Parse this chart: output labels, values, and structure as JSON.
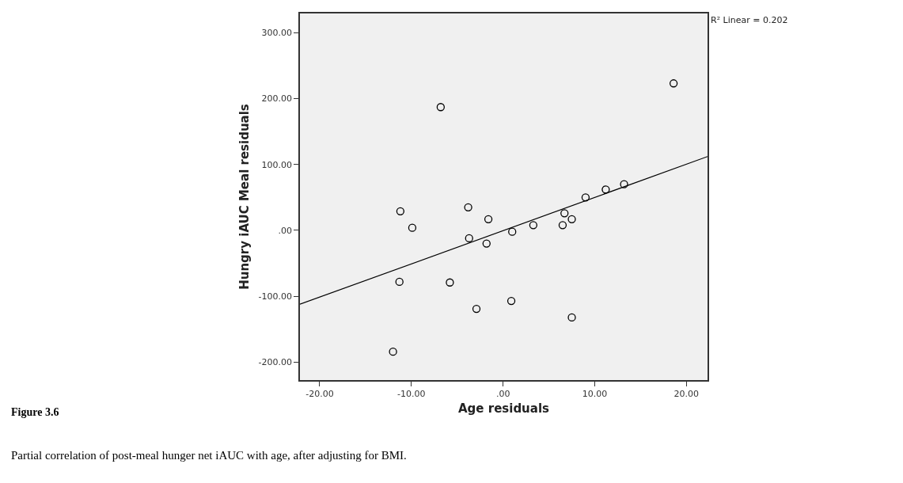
{
  "chart_data": {
    "type": "scatter",
    "xlabel": "Age residuals",
    "ylabel": "Hungry iAUC Meal residuals",
    "xlim": [
      -22.15,
      22.3
    ],
    "ylim": [
      -227,
      329
    ],
    "xticks": [
      {
        "value": -20,
        "label": "-20.00"
      },
      {
        "value": -10,
        "label": "-10.00"
      },
      {
        "value": 0,
        "label": ".00"
      },
      {
        "value": 10,
        "label": "10.00"
      },
      {
        "value": 20,
        "label": "20.00"
      }
    ],
    "yticks": [
      {
        "value": -200,
        "label": "-200.00"
      },
      {
        "value": -100,
        "label": "-100.00"
      },
      {
        "value": 0,
        "label": ".00"
      },
      {
        "value": 100,
        "label": "100.00"
      },
      {
        "value": 200,
        "label": "200.00"
      },
      {
        "value": 300,
        "label": "300.00"
      }
    ],
    "grid": false,
    "marker": "circle",
    "series": [
      {
        "color": "#000000",
        "x": [
          -6.8,
          -11.2,
          -9.9,
          -11.3,
          -5.8,
          -12.0,
          18.6,
          -3.8,
          -1.6,
          -3.7,
          -1.8,
          1.0,
          3.3,
          6.5,
          6.7,
          7.5,
          9.0,
          11.2,
          13.2,
          -2.9,
          0.9,
          7.5
        ],
        "values": [
          187,
          29,
          4,
          -78,
          -79,
          -184,
          223,
          35,
          17,
          -12,
          -20,
          -2,
          8,
          8,
          26,
          17,
          50,
          62,
          70,
          -119,
          -107,
          -132
        ]
      },
      {
        "type": "line",
        "marker": "none",
        "color": "#000000",
        "x": [
          -22.15,
          22.3
        ],
        "values": [
          -112,
          112
        ]
      }
    ],
    "annotations": [
      "R² Linear = 0.202",
      "Figure 3.6",
      "Partial correlation of post-meal hunger net iAUC with age, after adjusting for BMI."
    ]
  }
}
